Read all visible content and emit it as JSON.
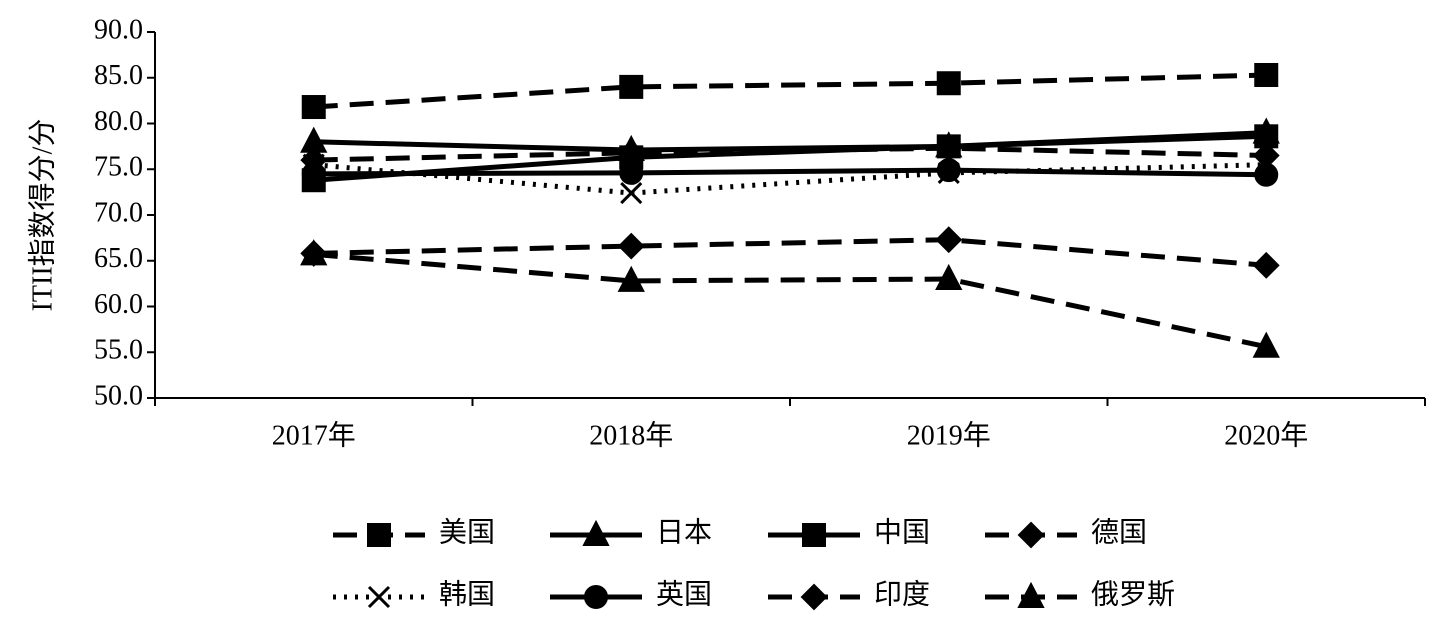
{
  "chart_data": {
    "type": "line",
    "y_label": "ITII指数得分/分",
    "categories": [
      "2017年",
      "2018年",
      "2019年",
      "2020年"
    ],
    "ylim": [
      50,
      90
    ],
    "yticks": [
      {
        "value": 50,
        "label": "50.0"
      },
      {
        "value": 55,
        "label": "55.0"
      },
      {
        "value": 60,
        "label": "60.0"
      },
      {
        "value": 65,
        "label": "65.0"
      },
      {
        "value": 70,
        "label": "70.0"
      },
      {
        "value": 75,
        "label": "75.0"
      },
      {
        "value": 80,
        "label": "80.0"
      },
      {
        "value": 85,
        "label": "85.0"
      },
      {
        "value": 90,
        "label": "90.0"
      }
    ],
    "series": [
      {
        "name": "美国",
        "color": "#000000",
        "line_style": "dashed",
        "marker": "square",
        "values": [
          81.8,
          84.0,
          84.4,
          85.3
        ]
      },
      {
        "name": "日本",
        "color": "#000000",
        "line_style": "solid",
        "marker": "triangle",
        "values": [
          78.0,
          77.1,
          77.5,
          79.0
        ]
      },
      {
        "name": "中国",
        "color": "#000000",
        "line_style": "solid",
        "marker": "square",
        "values": [
          73.8,
          76.3,
          77.5,
          78.6
        ]
      },
      {
        "name": "德国",
        "color": "#000000",
        "line_style": "dashed",
        "marker": "diamond",
        "values": [
          76.0,
          76.8,
          77.3,
          76.5
        ]
      },
      {
        "name": "韩国",
        "color": "#000000",
        "line_style": "dotted",
        "marker": "x",
        "values": [
          75.5,
          72.4,
          74.6,
          75.5
        ]
      },
      {
        "name": "英国",
        "color": "#000000",
        "line_style": "solid",
        "marker": "circle",
        "values": [
          74.5,
          74.6,
          74.9,
          74.4
        ]
      },
      {
        "name": "印度",
        "color": "#000000",
        "line_style": "dashed",
        "marker": "diamond",
        "values": [
          65.8,
          66.6,
          67.3,
          64.5
        ]
      },
      {
        "name": "俄罗斯",
        "color": "#000000",
        "line_style": "dashed",
        "marker": "triangle",
        "values": [
          65.7,
          62.8,
          63.0,
          55.6
        ]
      }
    ]
  }
}
